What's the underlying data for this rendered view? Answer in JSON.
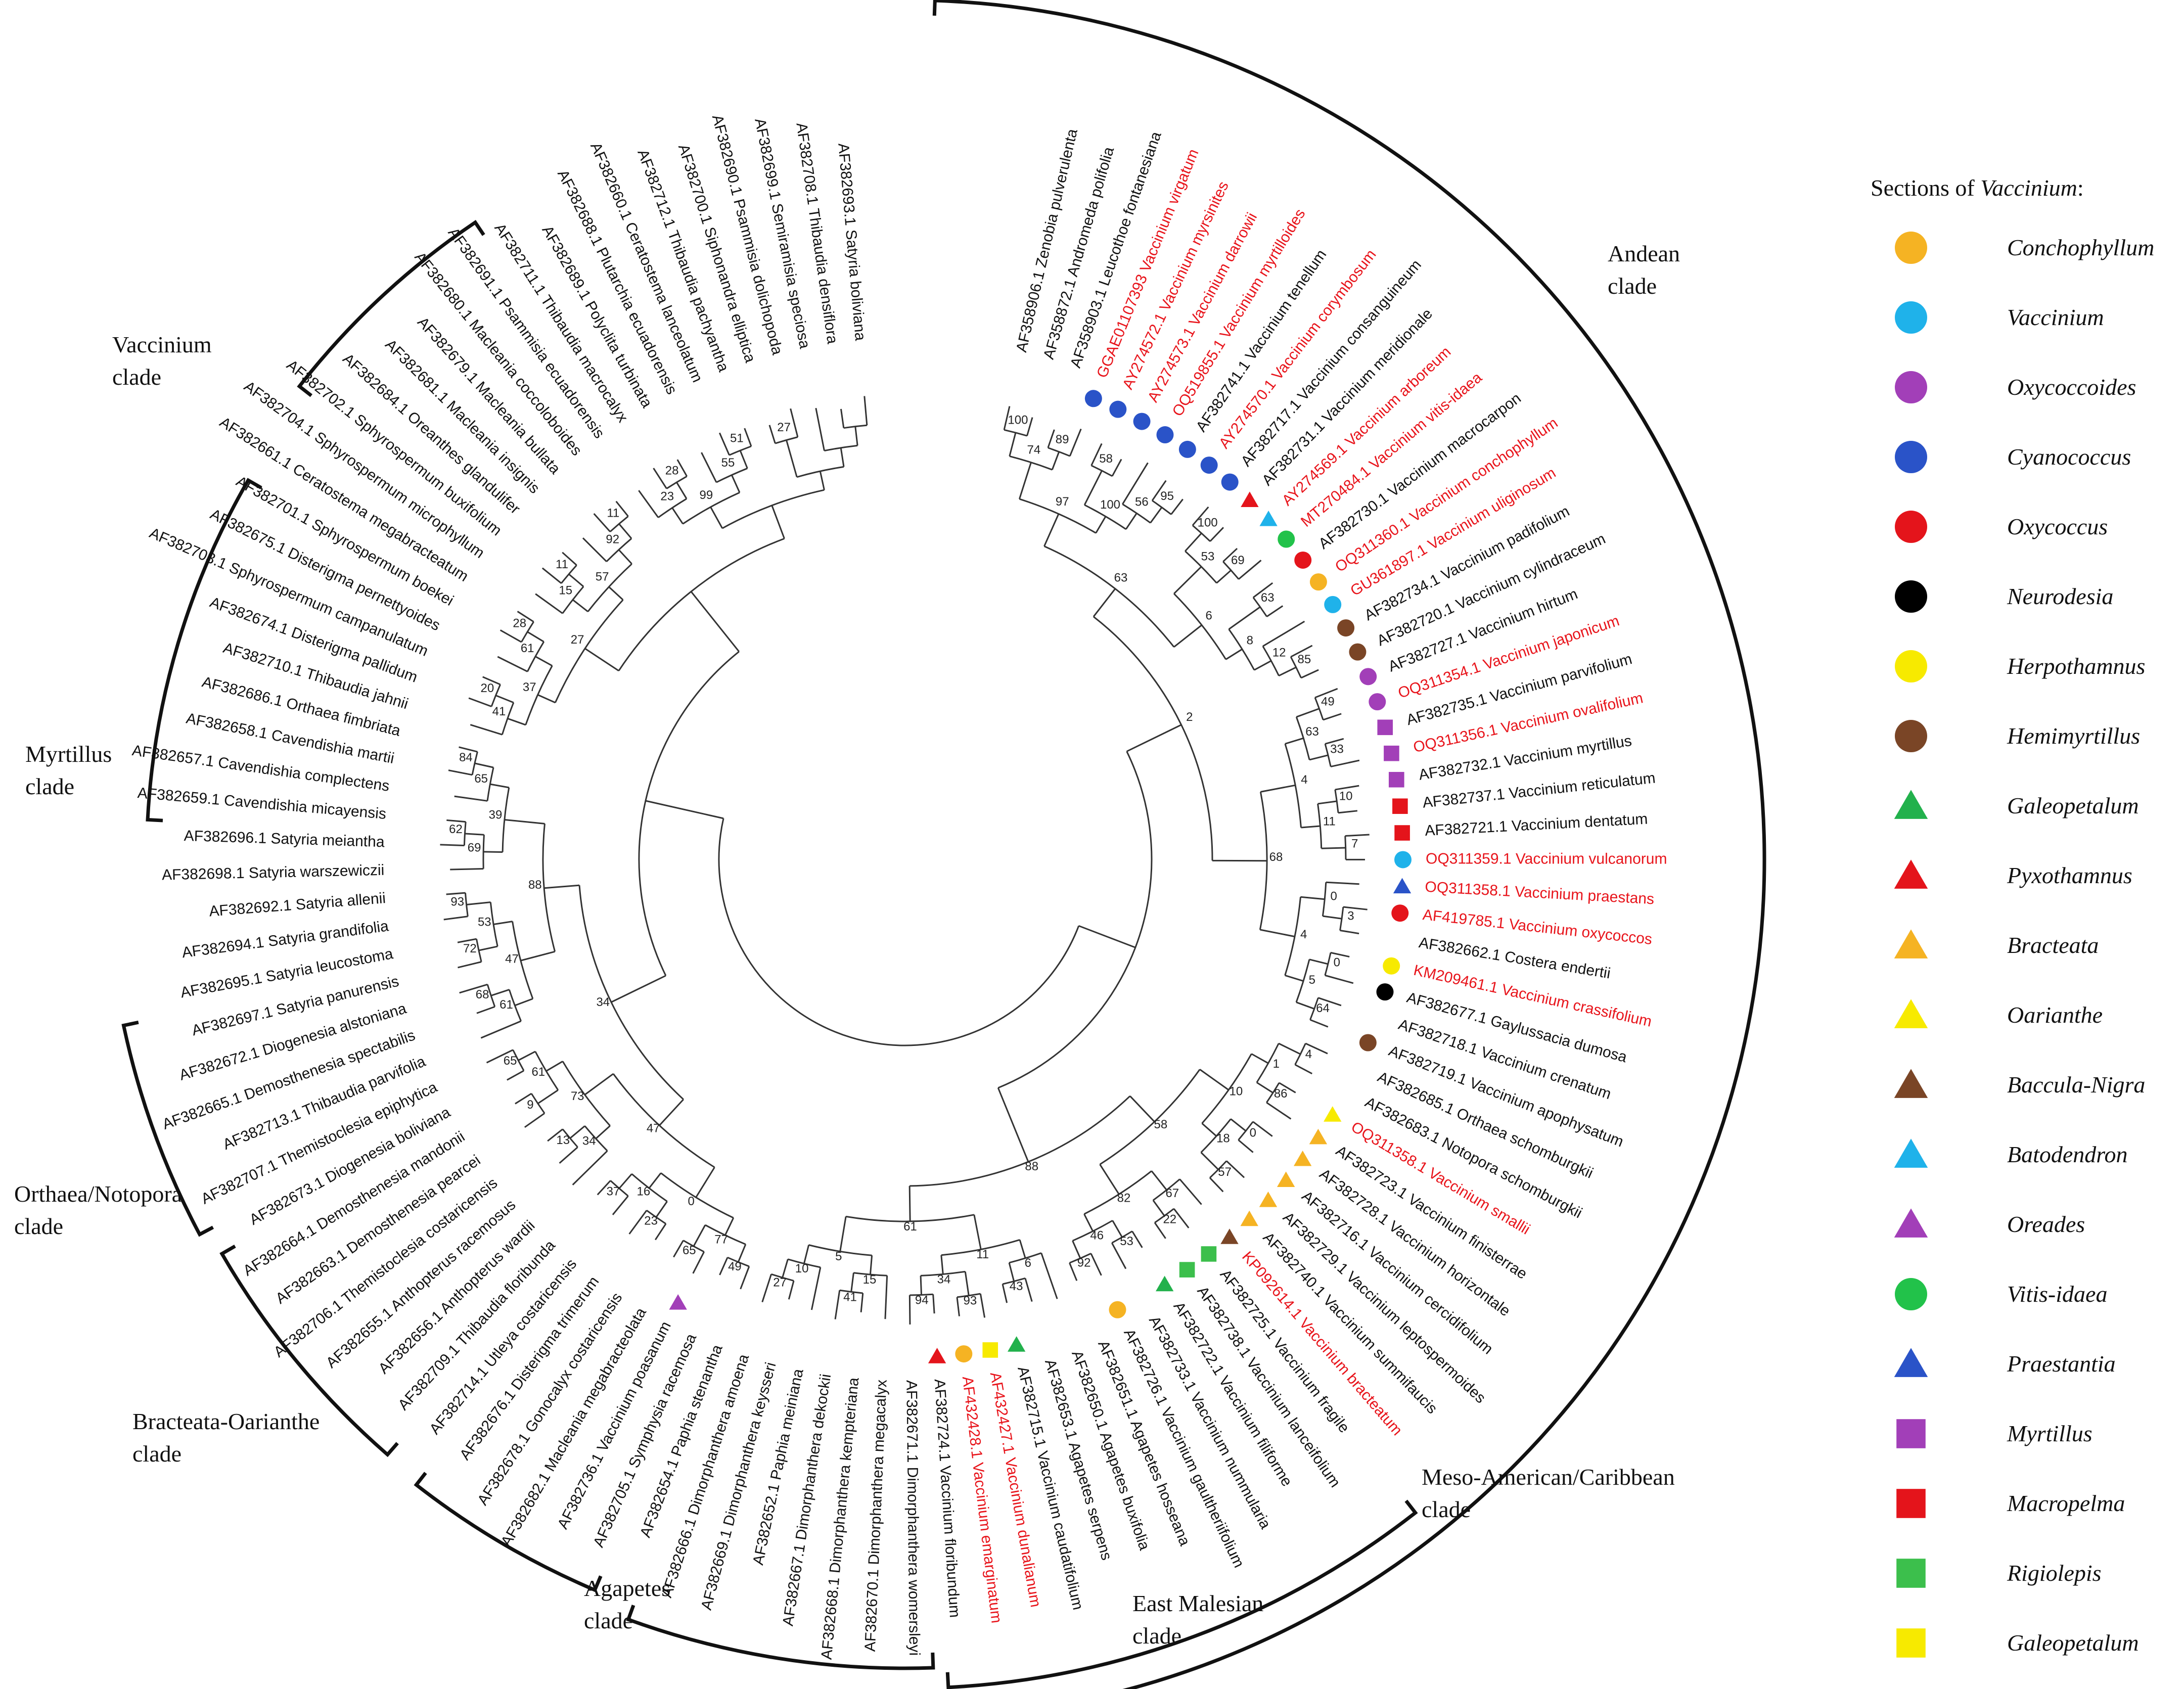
{
  "clades": {
    "vaccinium": "Vaccinium\nclade",
    "myrtillus": "Myrtillus\nclade",
    "orthaea": "Orthaea/Notopora\nclade",
    "bracteata": "Bracteata-Oarianthe\nclade",
    "agapetes": "Agapetes\nclade",
    "east_malesian": "East Malesian\nclade",
    "meso": "Meso-American/Caribbean\nclade",
    "andean": "Andean\nclade"
  },
  "legend": {
    "title_prefix": "Sections of ",
    "title_genus": "Vaccinium",
    "title_suffix": ":",
    "items": [
      {
        "label": "Conchophyllum",
        "shape": "circle",
        "color": "#f5b323"
      },
      {
        "label": "Vaccinium",
        "shape": "circle",
        "color": "#1fb2ea"
      },
      {
        "label": "Oxycoccoides",
        "shape": "circle",
        "color": "#a23fb8"
      },
      {
        "label": "Cyanococcus",
        "shape": "circle",
        "color": "#2a53c8"
      },
      {
        "label": "Oxycoccus",
        "shape": "circle",
        "color": "#e4141b"
      },
      {
        "label": "Neurodesia",
        "shape": "circle",
        "color": "#000000"
      },
      {
        "label": "Herpothamnus",
        "shape": "circle",
        "color": "#f7ea00"
      },
      {
        "label": "Hemimyrtillus",
        "shape": "circle",
        "color": "#7a4526"
      },
      {
        "label": "Galeopetalum",
        "shape": "triangle",
        "color": "#22b14c"
      },
      {
        "label": "Pyxothamnus",
        "shape": "triangle",
        "color": "#e4141b"
      },
      {
        "label": "Bracteata",
        "shape": "triangle",
        "color": "#f5b323"
      },
      {
        "label": "Oarianthe",
        "shape": "triangle",
        "color": "#f7ea00"
      },
      {
        "label": "Baccula-Nigra",
        "shape": "triangle",
        "color": "#7a4526"
      },
      {
        "label": "Batodendron",
        "shape": "triangle",
        "color": "#1fb2ea"
      },
      {
        "label": "Oreades",
        "shape": "triangle",
        "color": "#a23fb8"
      },
      {
        "label": "Vitis-idaea",
        "shape": "circle",
        "color": "#22c24a"
      },
      {
        "label": "Praestantia",
        "shape": "triangle",
        "color": "#2a53c8"
      },
      {
        "label": "Myrtillus",
        "shape": "square",
        "color": "#a23fb8"
      },
      {
        "label": "Macropelma",
        "shape": "square",
        "color": "#e4141b"
      },
      {
        "label": "Rigiolepis",
        "shape": "square",
        "color": "#3cbf4c"
      },
      {
        "label": "Galeopetalum",
        "shape": "square",
        "color": "#f7ea00"
      }
    ]
  },
  "tree": {
    "center": "radial",
    "leaves": [
      {
        "label": "AF358906.1 Zenobia pulverulenta",
        "red": false
      },
      {
        "label": "AF358872.1 Andromeda polifolia",
        "red": false
      },
      {
        "label": "AF358903.1 Leucothoe fontanesiana",
        "red": false
      },
      {
        "label": "GGAE01107393 Vaccinium virgatum",
        "red": true,
        "marker": "Cyanococcus"
      },
      {
        "label": "AY274572.1 Vaccinium myrsinites",
        "red": true,
        "marker": "Cyanococcus"
      },
      {
        "label": "AY274573.1 Vaccinium darrowii",
        "red": true,
        "marker": "Cyanococcus"
      },
      {
        "label": "OQ519855.1 Vaccinium myrtilloides",
        "red": true,
        "marker": "Cyanococcus"
      },
      {
        "label": "AF382741.1 Vaccinium tenellum",
        "red": false,
        "marker": "Cyanococcus"
      },
      {
        "label": "AY274570.1 Vaccinium corymbosum",
        "red": true,
        "marker": "Cyanococcus"
      },
      {
        "label": "AF382717.1 Vaccinium consanguineum",
        "red": false,
        "marker": "Cyanococcus"
      },
      {
        "label": "AF382731.1 Vaccinium meridionale",
        "red": false,
        "marker": "Pyxothamnus"
      },
      {
        "label": "AY274569.1 Vaccinium arboreum",
        "red": true,
        "marker": "Batodendron"
      },
      {
        "label": "MT270484.1 Vaccinium vitis-idaea",
        "red": true,
        "marker": "Vitis-idaea"
      },
      {
        "label": "AF382730.1 Vaccinium macrocarpon",
        "red": false,
        "marker": "Oxycoccus"
      },
      {
        "label": "OQ311360.1 Vaccinium conchophyllum",
        "red": true,
        "marker": "Conchophyllum"
      },
      {
        "label": "GU361897.1 Vaccinium uliginosum",
        "red": true,
        "marker": "Vaccinium"
      },
      {
        "label": "AF382734.1 Vaccinium padifolium",
        "red": false,
        "marker": "Hemimyrtillus"
      },
      {
        "label": "AF382720.1 Vaccinium cylindraceum",
        "red": false,
        "marker": "Hemimyrtillus"
      },
      {
        "label": "AF382727.1 Vaccinium hirtum",
        "red": false,
        "marker": "Oxycoccoides"
      },
      {
        "label": "OQ311354.1 Vaccinium japonicum",
        "red": true,
        "marker": "Oxycoccoides"
      },
      {
        "label": "AF382735.1 Vaccinium parvifolium",
        "red": false,
        "marker": "Myrtillus"
      },
      {
        "label": "OQ311356.1 Vaccinium ovalifolium",
        "red": true,
        "marker": "Myrtillus"
      },
      {
        "label": "AF382732.1 Vaccinium myrtillus",
        "red": false,
        "marker": "Myrtillus"
      },
      {
        "label": "AF382737.1 Vaccinium reticulatum",
        "red": false,
        "marker": "Macropelma"
      },
      {
        "label": "AF382721.1 Vaccinium dentatum",
        "red": false,
        "marker": "Macropelma"
      },
      {
        "label": "OQ311359.1 Vaccinium vulcanorum",
        "red": true,
        "marker": "Vaccinium"
      },
      {
        "label": "OQ311358.1 Vaccinium praestans",
        "red": true,
        "marker": "Praestantia"
      },
      {
        "label": "AF419785.1 Vaccinium oxycoccos",
        "red": true,
        "marker": "Oxycoccus"
      },
      {
        "label": "AF382662.1 Costera endertii",
        "red": false
      },
      {
        "label": "KM209461.1 Vaccinium crassifolium",
        "red": true,
        "marker": "Herpothamnus"
      },
      {
        "label": "AF382677.1 Gaylussacia dumosa",
        "red": false,
        "marker": "Neurodesia"
      },
      {
        "label": "AF382718.1 Vaccinium crenatum",
        "red": false
      },
      {
        "label": "AF382719.1 Vaccinium apophysatum",
        "red": false,
        "marker": "Hemimyrtillus"
      },
      {
        "label": "AF382685.1 Orthaea schomburgkii",
        "red": false
      },
      {
        "label": "AF382683.1 Notopora schomburgkii",
        "red": false
      },
      {
        "label": "OQ311358.1 Vaccinium smallii",
        "red": true,
        "marker": "Oarianthe"
      },
      {
        "label": "AF382723.1 Vaccinium finisterrae",
        "red": false,
        "marker": "Bracteata"
      },
      {
        "label": "AF382728.1 Vaccinium horizontale",
        "red": false,
        "marker": "Bracteata"
      },
      {
        "label": "AF382716.1 Vaccinium cercidifolium",
        "red": false,
        "marker": "Bracteata"
      },
      {
        "label": "AF382729.1 Vaccinium leptospermoides",
        "red": false,
        "marker": "Bracteata"
      },
      {
        "label": "AF382740.1 Vaccinium summifaucis",
        "red": false,
        "marker": "Bracteata"
      },
      {
        "label": "KP092614.1 Vaccinium bracteatum",
        "red": true,
        "marker": "Baccula-Nigra"
      },
      {
        "label": "AF382725.1 Vaccinium fragile",
        "red": false,
        "marker": "Rigiolepis"
      },
      {
        "label": "AF382738.1 Vaccinium lanceifolium",
        "red": false,
        "marker": "Rigiolepis"
      },
      {
        "label": "AF382722.1 Vaccinium filiforme",
        "red": false,
        "marker": "Galeopetalum"
      },
      {
        "label": "AF382733.1 Vaccinium nummularia",
        "red": false
      },
      {
        "label": "AF382726.1 Vaccinium gaultheriifolium",
        "red": false,
        "marker": "Conchophyllum"
      },
      {
        "label": "AF382651.1 Agapetes hosseana",
        "red": false
      },
      {
        "label": "AF382650.1 Agapetes buxifolia",
        "red": false
      },
      {
        "label": "AF382653.1 Agapetes serpens",
        "red": false
      },
      {
        "label": "AF382715.1 Vaccinium caudatifolium",
        "red": false,
        "marker": "Galeopetalum"
      },
      {
        "label": "AF432427.1 Vaccinium dunalianum",
        "red": true,
        "marker": "Galeopetalum-sq"
      },
      {
        "label": "AF432428.1 Vaccinium emarginatum",
        "red": true,
        "marker": "Conchophyllum"
      },
      {
        "label": "AF382724.1 Vaccinium floribundum",
        "red": false,
        "marker": "Pyxothamnus"
      },
      {
        "label": "AF382671.1 Dimorphanthera womersleyi",
        "red": false
      },
      {
        "label": "AF382670.1 Dimorphanthera megacalyx",
        "red": false
      },
      {
        "label": "AF382668.1 Dimorphanthera kempteriana",
        "red": false
      },
      {
        "label": "AF382667.1 Dimorphanthera dekockii",
        "red": false
      },
      {
        "label": "AF382652.1 Paphia meiniana",
        "red": false
      },
      {
        "label": "AF382669.1 Dimorphanthera keysseri",
        "red": false
      },
      {
        "label": "AF382666.1 Dimorphanthera amoena",
        "red": false
      },
      {
        "label": "AF382654.1 Paphia stenantha",
        "red": false
      },
      {
        "label": "AF382705.1 Symphysia racemosa",
        "red": false
      },
      {
        "label": "AF382736.1 Vaccinium poasanum",
        "red": false,
        "marker": "Oreades"
      },
      {
        "label": "AF382682.1 Macleania megabracteolata",
        "red": false
      },
      {
        "label": "AF382678.1 Gonocalyx costaricensis",
        "red": false
      },
      {
        "label": "AF382676.1 Disterigma trimerum",
        "red": false
      },
      {
        "label": "AF382714.1 Utleya costaricensis",
        "red": false
      },
      {
        "label": "AF382709.1 Thibaudia floribunda",
        "red": false
      },
      {
        "label": "AF382656.1 Anthopterus wardii",
        "red": false
      },
      {
        "label": "AF382655.1 Anthopterus racemosus",
        "red": false
      },
      {
        "label": "AF382706.1 Themistoclesia costaricensis",
        "red": false
      },
      {
        "label": "AF382663.1 Demosthenesia pearcei",
        "red": false
      },
      {
        "label": "AF382664.1 Demosthenesia mandonii",
        "red": false
      },
      {
        "label": "AF382673.1 Diogenesia boliviana",
        "red": false
      },
      {
        "label": "AF382707.1 Themistoclesia epiphytica",
        "red": false
      },
      {
        "label": "AF382713.1 Thibaudia parvifolia",
        "red": false
      },
      {
        "label": "AF382665.1 Demosthenesia spectabilis",
        "red": false
      },
      {
        "label": "AF382672.1 Diogenesia alstoniana",
        "red": false
      },
      {
        "label": "AF382697.1 Satyria panurensis",
        "red": false
      },
      {
        "label": "AF382695.1 Satyria leucostoma",
        "red": false
      },
      {
        "label": "AF382694.1 Satyria grandifolia",
        "red": false
      },
      {
        "label": "AF382692.1 Satyria allenii",
        "red": false
      },
      {
        "label": "AF382698.1 Satyria warszewiczii",
        "red": false
      },
      {
        "label": "AF382696.1 Satyria meiantha",
        "red": false
      },
      {
        "label": "AF382659.1 Cavendishia micayensis",
        "red": false
      },
      {
        "label": "AF382657.1 Cavendishia complectens",
        "red": false
      },
      {
        "label": "AF382658.1 Cavendishia martii",
        "red": false
      },
      {
        "label": "AF382686.1 Orthaea fimbriata",
        "red": false
      },
      {
        "label": "AF382710.1 Thibaudia jahnii",
        "red": false
      },
      {
        "label": "AF382674.1 Disterigma pallidum",
        "red": false
      },
      {
        "label": "AF382703.1 Sphyrospermum campanulatum",
        "red": false
      },
      {
        "label": "AF382675.1 Disterigma pernettyoides",
        "red": false
      },
      {
        "label": "AF382701.1 Sphyrospermum boekei",
        "red": false
      },
      {
        "label": "AF382661.1 Ceratostema megabracteatum",
        "red": false
      },
      {
        "label": "AF382704.1 Sphyrospermum microphyllum",
        "red": false
      },
      {
        "label": "AF382702.1 Sphyrospermum buxifolium",
        "red": false
      },
      {
        "label": "AF382684.1 Oreanthes glandulifer",
        "red": false
      },
      {
        "label": "AF382681.1 Macleania insignis",
        "red": false
      },
      {
        "label": "AF382679.1 Macleania bullata",
        "red": false
      },
      {
        "label": "AF382680.1 Macleania coccoloboides",
        "red": false
      },
      {
        "label": "AF382691.1 Psammisia ecuadorensis",
        "red": false
      },
      {
        "label": "AF382711.1 Thibaudia macrocalyx",
        "red": false
      },
      {
        "label": "AF382689.1 Polyclita turbinata",
        "red": false
      },
      {
        "label": "AF382688.1 Plutarchia ecuadorensis",
        "red": false
      },
      {
        "label": "AF382660.1 Ceratostema lanceolatum",
        "red": false
      },
      {
        "label": "AF382712.1 Thibaudia pachyantha",
        "red": false
      },
      {
        "label": "AF382700.1 Siphonandra elliptica",
        "red": false
      },
      {
        "label": "AF382690.1 Psammisia dolichopoda",
        "red": false
      },
      {
        "label": "AF382699.1 Semiramisia speciosa",
        "red": false
      },
      {
        "label": "AF382708.1 Thibaudia densiflora",
        "red": false
      },
      {
        "label": "AF382693.1 Satyria boliviana",
        "red": false
      }
    ],
    "support_values": [
      "100",
      "89",
      "74",
      "58",
      "95",
      "56",
      "100",
      "97",
      "100",
      "69",
      "53",
      "63",
      "85",
      "12",
      "8",
      "6",
      "63",
      "49",
      "33",
      "63",
      "10",
      "7",
      "11",
      "4",
      "3",
      "0",
      "0",
      "64",
      "5",
      "4",
      "68",
      "2",
      "4",
      "86",
      "1",
      "0",
      "57",
      "18",
      "10",
      "22",
      "67",
      "53",
      "92",
      "46",
      "82",
      "58",
      "43",
      "6",
      "93",
      "94",
      "34",
      "11",
      "41",
      "15",
      "27",
      "10",
      "5",
      "61",
      "88",
      "49",
      "65",
      "77",
      "23",
      "37",
      "16",
      "0",
      "13",
      "34",
      "9",
      "65",
      "61",
      "73",
      "47",
      "68",
      "61",
      "72",
      "93",
      "53",
      "47",
      "62",
      "69",
      "84",
      "65",
      "39",
      "88",
      "34",
      "20",
      "41",
      "28",
      "61",
      "37",
      "11",
      "15",
      "11",
      "92",
      "57",
      "27",
      "28",
      "23",
      "51",
      "55",
      "99",
      "27"
    ]
  }
}
